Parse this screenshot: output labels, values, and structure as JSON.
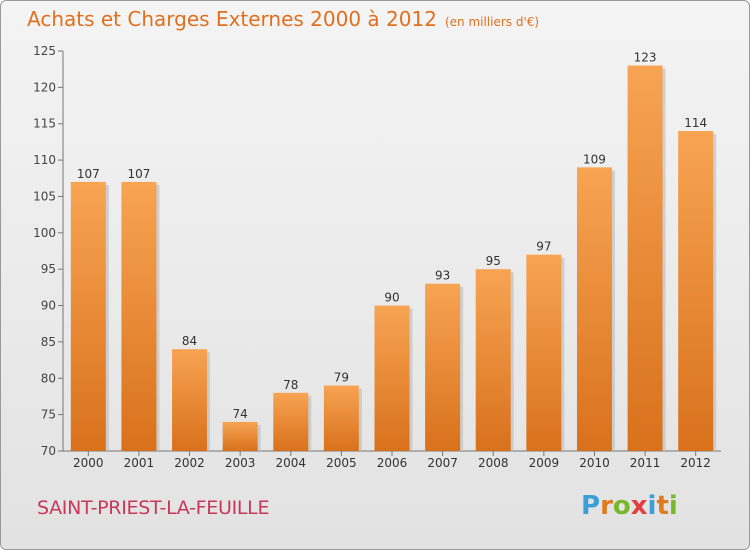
{
  "header": {
    "title": "Achats et Charges Externes 2000 à 2012",
    "subtitle": "(en milliers d'€)"
  },
  "footer": {
    "commune": "SAINT-PRIEST-LA-FEUILLE",
    "logo": "Proxiti",
    "logo_letters": [
      "P",
      "r",
      "o",
      "x",
      "i",
      "t",
      "i"
    ],
    "logo_colors": [
      "#3aa0d8",
      "#e07a1f",
      "#79b829",
      "#e23f3f",
      "#3aa0d8",
      "#e07a1f",
      "#79b829"
    ]
  },
  "chart_data": {
    "type": "bar",
    "title": "Achats et Charges Externes 2000 à 2012",
    "xlabel": "",
    "ylabel": "",
    "categories": [
      "2000",
      "2001",
      "2002",
      "2003",
      "2004",
      "2005",
      "2006",
      "2007",
      "2008",
      "2009",
      "2010",
      "2011",
      "2012"
    ],
    "values": [
      107,
      107,
      84,
      74,
      78,
      79,
      90,
      93,
      95,
      97,
      109,
      123,
      114
    ],
    "ylim": [
      70,
      125
    ],
    "yticks": [
      70,
      75,
      80,
      85,
      90,
      95,
      100,
      105,
      110,
      115,
      120,
      125
    ],
    "grid": false,
    "bar_color": "#f0923a"
  }
}
